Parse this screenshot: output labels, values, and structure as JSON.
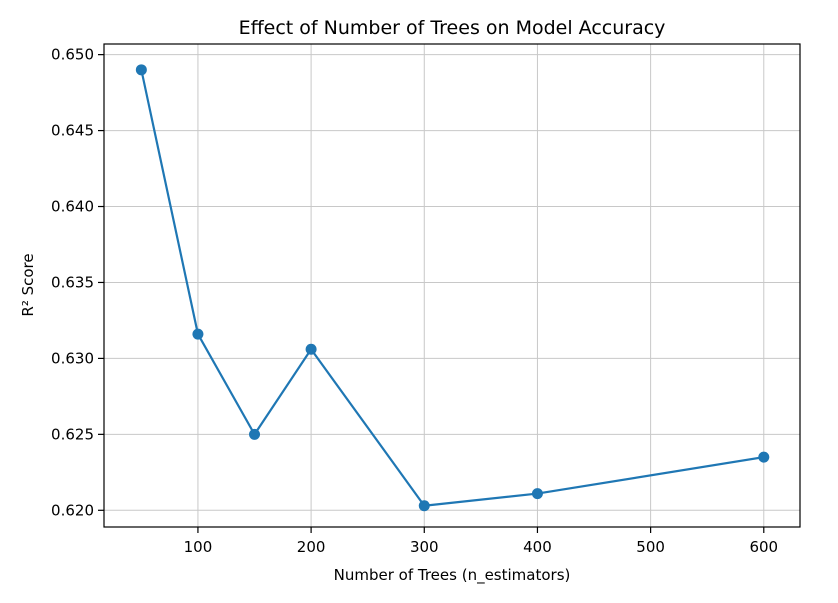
{
  "chart_data": {
    "type": "line",
    "title": "Effect of Number of Trees on Model Accuracy",
    "xlabel": "Number of Trees (n_estimators)",
    "ylabel": "R² Score",
    "xlim": [
      17,
      632
    ],
    "ylim": [
      0.6189,
      0.6507
    ],
    "xticks": [
      100,
      200,
      300,
      400,
      500,
      600
    ],
    "yticks": [
      0.62,
      0.625,
      0.63,
      0.635,
      0.64,
      0.645,
      0.65
    ],
    "grid": true,
    "series": [
      {
        "color": "#1f77b4",
        "marker": "circle",
        "x": [
          50,
          100,
          150,
          200,
          300,
          400,
          600
        ],
        "y": [
          0.649,
          0.6316,
          0.625,
          0.6306,
          0.6203,
          0.6211,
          0.6235
        ]
      }
    ]
  }
}
